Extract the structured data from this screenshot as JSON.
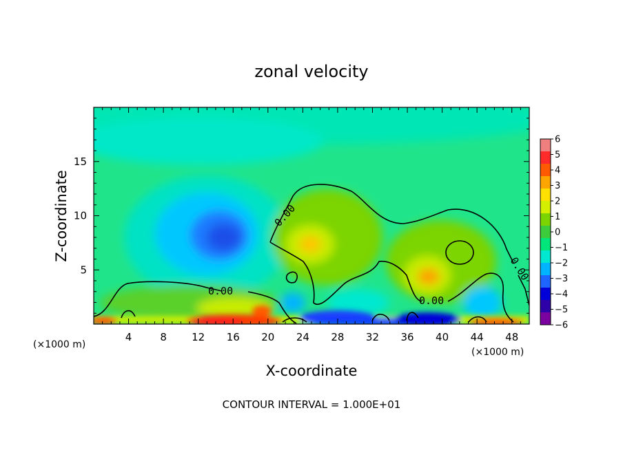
{
  "chart_data": {
    "type": "heatmap",
    "title": "zonal velocity",
    "xlabel": "X-coordinate",
    "ylabel": "Z-coordinate",
    "x_unit": "(×1000 m)",
    "xlim": [
      0,
      50
    ],
    "ylim": [
      0,
      20
    ],
    "x_ticks": [
      4,
      8,
      12,
      16,
      20,
      24,
      28,
      32,
      36,
      40,
      44,
      48
    ],
    "y_ticks": [
      5,
      10,
      15
    ],
    "colorbar": {
      "ticks": [
        "6",
        "5",
        "4",
        "3",
        "2",
        "1",
        "0",
        "−1",
        "−2",
        "−3",
        "−4",
        "−5",
        "−6"
      ],
      "colors": [
        "#f08080",
        "#ff2a2a",
        "#ff5a00",
        "#ffa500",
        "#ffe000",
        "#d4f000",
        "#7cd400",
        "#3ccc3c",
        "#00e67a",
        "#00e8d0",
        "#00b4ff",
        "#1e64ff",
        "#0000d8",
        "#2e00a8",
        "#7a00a0"
      ]
    },
    "contour_label": "0.00",
    "footnote": "CONTOUR INTERVAL = 1.000E+01",
    "features": [
      {
        "type": "min",
        "x": 14.5,
        "z": 8.5,
        "value": -3.5
      },
      {
        "type": "max",
        "x": 25.0,
        "z": 7.5,
        "value": 2.5
      },
      {
        "type": "max",
        "x": 38.0,
        "z": 4.5,
        "value": 3.0
      },
      {
        "type": "max",
        "x": 14.0,
        "z": 0.3,
        "value": 5.0
      },
      {
        "type": "min",
        "x": 37.0,
        "z": 0.3,
        "value": -5.0
      }
    ]
  }
}
